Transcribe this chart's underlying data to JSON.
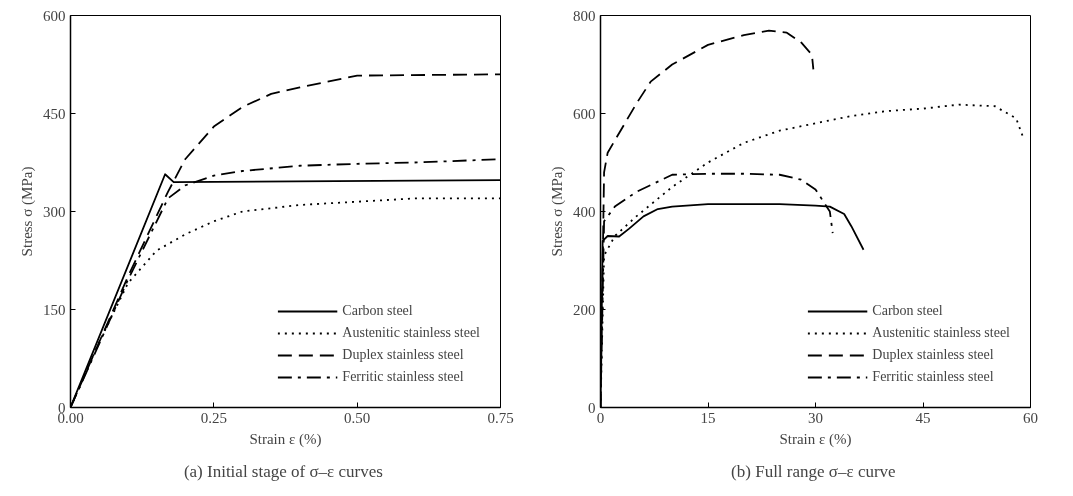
{
  "chart_data": [
    {
      "type": "line",
      "xlabel": "Strain ε (%)",
      "ylabel": "Stress σ (MPa)",
      "annotations": [
        "(a)  Initial stage of σ–ε curves"
      ],
      "xlim": [
        0,
        0.75
      ],
      "ylim": [
        0,
        600
      ],
      "xticks": [
        {
          "value": 0,
          "label": "0.00"
        },
        0.25,
        {
          "value": 0.5,
          "label": "0.50"
        },
        0.75
      ],
      "yticks": [
        0,
        150,
        300,
        450,
        600
      ],
      "grid": false,
      "legend": "bottom right",
      "series": [
        {
          "name": "Carbon steel",
          "color": "#000000",
          "line_style": "solid",
          "x": [
            0,
            0.165,
            0.18,
            0.75
          ],
          "values": [
            0,
            357,
            345,
            348
          ]
        },
        {
          "name": "Austenitic stainless steel",
          "color": "#000000",
          "line_style": "dotted",
          "x": [
            0,
            0.05,
            0.1,
            0.15,
            0.2,
            0.25,
            0.3,
            0.4,
            0.5,
            0.6,
            0.75
          ],
          "values": [
            0,
            100,
            190,
            240,
            265,
            285,
            300,
            310,
            315,
            320,
            320
          ]
        },
        {
          "name": "Duplex stainless steel",
          "color": "#000000",
          "line_style": "dashed",
          "x": [
            0,
            0.1,
            0.17,
            0.2,
            0.25,
            0.3,
            0.35,
            0.4,
            0.5,
            0.75
          ],
          "values": [
            0,
            200,
            330,
            380,
            430,
            460,
            480,
            490,
            508,
            510
          ]
        },
        {
          "name": "Ferritic stainless steel",
          "color": "#000000",
          "line_style": "dashdot",
          "x": [
            0,
            0.1,
            0.17,
            0.2,
            0.25,
            0.3,
            0.4,
            0.5,
            0.6,
            0.75
          ],
          "values": [
            0,
            195,
            320,
            340,
            355,
            362,
            370,
            373,
            375,
            380
          ]
        }
      ]
    },
    {
      "type": "line",
      "xlabel": "Strain ε (%)",
      "ylabel": "Stress σ (MPa)",
      "annotations": [
        "(b)  Full range σ–ε curve"
      ],
      "xlim": [
        0,
        60
      ],
      "ylim": [
        0,
        800
      ],
      "xticks": [
        0,
        15,
        30,
        45,
        60
      ],
      "yticks": [
        0,
        200,
        400,
        600,
        800
      ],
      "grid": false,
      "legend": "bottom right",
      "series": [
        {
          "name": "Carbon steel",
          "color": "#000000",
          "line_style": "solid",
          "x": [
            0,
            0.3,
            1,
            2.6,
            4,
            6,
            8,
            10,
            15,
            20,
            25,
            30,
            32,
            34,
            35,
            36.7
          ],
          "values": [
            0,
            340,
            350,
            349,
            365,
            390,
            405,
            410,
            415,
            415,
            415,
            412,
            410,
            395,
            370,
            322
          ]
        },
        {
          "name": "Austenitic stainless steel",
          "color": "#000000",
          "line_style": "dotted",
          "x": [
            0,
            0.5,
            2,
            5,
            10,
            15,
            20,
            25,
            30,
            35,
            40,
            45,
            50,
            55,
            58,
            59
          ],
          "values": [
            0,
            310,
            350,
            390,
            450,
            500,
            540,
            565,
            580,
            595,
            605,
            610,
            618,
            615,
            590,
            550
          ]
        },
        {
          "name": "Duplex stainless steel",
          "color": "#000000",
          "line_style": "dashed",
          "x": [
            0,
            0.5,
            1,
            3,
            5,
            7,
            10,
            15,
            20,
            23.5,
            26,
            28,
            29.5,
            29.7
          ],
          "values": [
            0,
            480,
            520,
            570,
            620,
            665,
            700,
            740,
            760,
            769,
            765,
            745,
            720,
            690
          ]
        },
        {
          "name": "Ferritic stainless steel",
          "color": "#000000",
          "line_style": "dashdot",
          "x": [
            0,
            0.5,
            2,
            5,
            10,
            15,
            20,
            25,
            28,
            30,
            32,
            32.4
          ],
          "values": [
            0,
            380,
            410,
            440,
            475,
            477,
            477,
            475,
            465,
            445,
            400,
            356
          ]
        }
      ]
    }
  ]
}
